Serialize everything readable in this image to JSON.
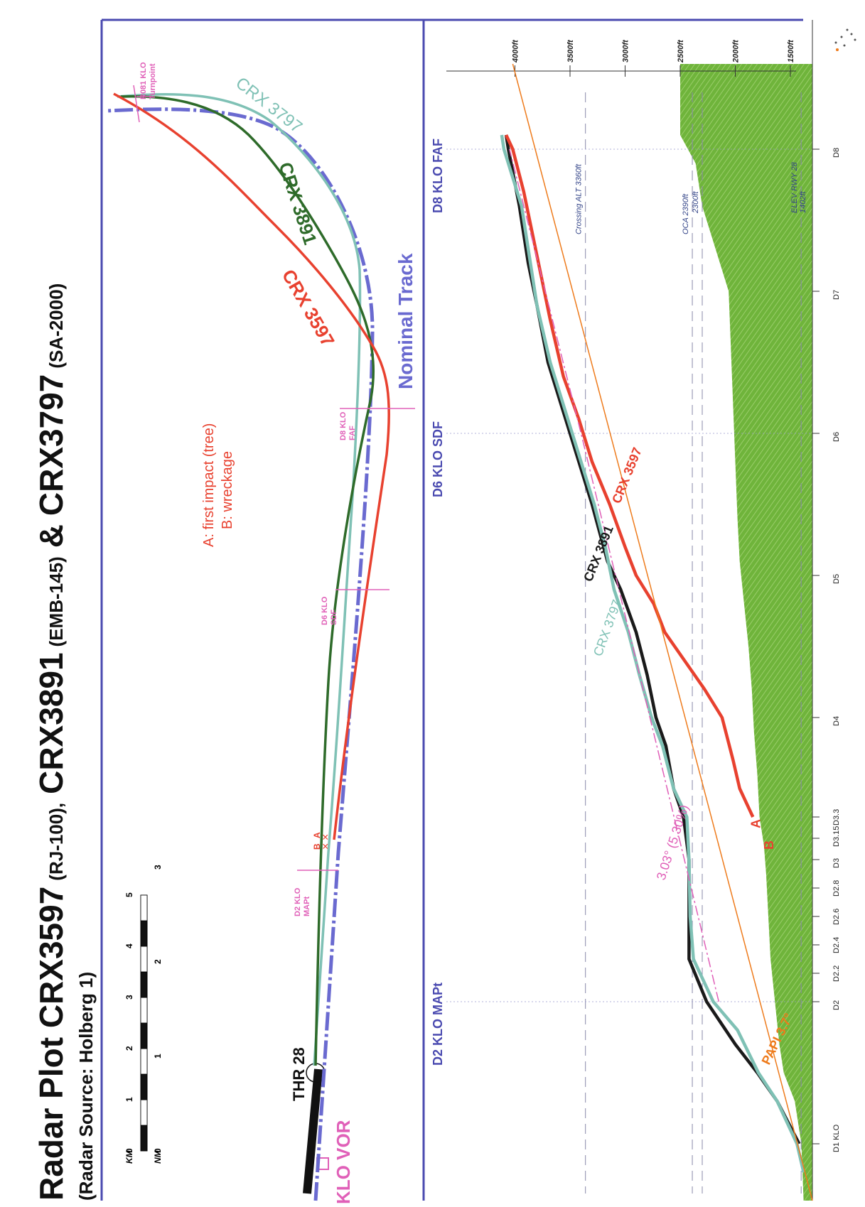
{
  "title": {
    "main_a": "Radar Plot CRX3597",
    "main_a_sub": "(RJ-100),",
    "main_b": "CRX3891",
    "main_b_sub": "(EMB-145)",
    "main_amp": "&",
    "main_c": "CRX3797",
    "main_c_sub": "(SA-2000)",
    "source": "(Radar Source: Holberg 1)"
  },
  "colors": {
    "crx3597": "#e8412f",
    "crx3891_plan": "#2e6b2a",
    "crx3891_profile": "#1a1a1a",
    "crx3797": "#7fc1b5",
    "nominal": "#6a6ad0",
    "magenta": "#e060b8",
    "papi": "#ee7b1c",
    "terrain": "#6fb43b",
    "frame": "#4a4ab0"
  },
  "plan_view": {
    "scale_km_label": "KM",
    "scale_nm_label": "NM",
    "km_ticks": [
      "0",
      "1",
      "2",
      "3",
      "4",
      "5"
    ],
    "nm_ticks": [
      "0",
      "1",
      "2",
      "3"
    ],
    "thr_label": "THR 28",
    "vor_label": "KLO VOR",
    "nominal_label": "Nominal Track",
    "legend_a": "A: first impact (tree)",
    "legend_b": "B: wreckage",
    "waypoints": [
      "D2 KLO\nMAPt",
      "D6 KLO\nSDF",
      "D8 KLO\nFAF",
      "R081 KLO\nTurnpoint"
    ],
    "marker_a": "A",
    "marker_b": "B",
    "track_labels": [
      "CRX 3597",
      "CRX 3891",
      "CRX 3797"
    ]
  },
  "chart_data": {
    "type": "line",
    "title": "",
    "xlabel": "",
    "ylabel": "",
    "x_unit": "NM from KLO",
    "y_unit": "ft",
    "x_ticks": [
      "D1 KLO",
      "D2",
      "D2.2",
      "D2.4",
      "D2.6",
      "D2.8",
      "D3",
      "D3.15",
      "D3.3",
      "D4",
      "D5",
      "D6",
      "D7",
      "D8"
    ],
    "y_ticks": [
      "1500ft",
      "2000ft",
      "2500ft",
      "3000ft",
      "3500ft",
      "4000ft"
    ],
    "ylim": [
      1300,
      4200
    ],
    "xlim": [
      0.6,
      8.6
    ],
    "section_labels": [
      "D2 KLO MAPt",
      "D6 KLO SDF",
      "D8 KLO FAF"
    ],
    "reference_lines": [
      {
        "label": "Crossing ALT 3360ft",
        "y": 3360
      },
      {
        "label": "OCA 2390ft",
        "y": 2390
      },
      {
        "label": "2300ft",
        "y": 2300
      },
      {
        "label": "ELEV RWY 28\n1402ft",
        "y": 1402
      }
    ],
    "glide_labels": [
      "3.03° (5.30%)",
      "PAPI 3.7°"
    ],
    "markers": [
      {
        "label": "A",
        "x": 3.3,
        "y": 1840
      },
      {
        "label": "B",
        "x": 3.15,
        "y": 1720
      }
    ],
    "series": [
      {
        "name": "CRX 3891",
        "x": [
          1.0,
          1.3,
          1.5,
          1.7,
          2.0,
          2.3,
          2.6,
          3.0,
          3.3,
          3.5,
          3.8,
          4.0,
          4.3,
          4.6,
          4.9,
          5.1,
          5.5,
          5.8,
          6.1,
          6.5,
          6.9,
          7.2,
          7.6,
          8.0,
          8.1
        ],
        "y": [
          1420,
          1620,
          1800,
          2000,
          2260,
          2420,
          2420,
          2420,
          2470,
          2560,
          2630,
          2720,
          2800,
          2900,
          3040,
          3160,
          3300,
          3420,
          3540,
          3700,
          3800,
          3880,
          3960,
          4060,
          4080
        ]
      },
      {
        "name": "CRX 3797",
        "x": [
          0.8,
          1.0,
          1.3,
          1.5,
          1.8,
          2.0,
          2.3,
          2.6,
          3.0,
          3.3,
          3.5,
          3.8,
          4.0,
          4.3,
          4.6,
          4.9,
          5.2,
          5.5,
          5.8,
          6.1,
          6.5,
          6.9,
          7.2,
          7.6,
          8.0,
          8.1
        ],
        "y": [
          1380,
          1440,
          1620,
          1790,
          1980,
          2200,
          2380,
          2410,
          2420,
          2440,
          2560,
          2660,
          2760,
          2870,
          2970,
          3100,
          3180,
          3280,
          3400,
          3520,
          3680,
          3800,
          3860,
          3940,
          4100,
          4120
        ]
      },
      {
        "name": "CRX 3597",
        "x": [
          3.3,
          3.5,
          3.7,
          4.0,
          4.2,
          4.4,
          4.6,
          4.8,
          5.0,
          5.2,
          5.5,
          5.8,
          6.1,
          6.4,
          6.8,
          7.1,
          7.4,
          7.7,
          8.0,
          8.1
        ],
        "y": [
          1840,
          1960,
          2020,
          2120,
          2280,
          2460,
          2640,
          2740,
          2900,
          3000,
          3140,
          3300,
          3420,
          3560,
          3680,
          3760,
          3840,
          3920,
          4020,
          4080
        ]
      },
      {
        "name": "",
        "x": [
          0.6,
          8.6
        ],
        "y": [
          1300,
          4020
        ]
      },
      {
        "name": "",
        "x": [
          2.0,
          6.0,
          8.0
        ],
        "y": [
          2150,
          3400,
          4050
        ]
      }
    ],
    "terrain": {
      "x": [
        0.6,
        1.0,
        1.3,
        1.5,
        1.7,
        2.0,
        2.3,
        2.6,
        2.9,
        3.1,
        3.3,
        3.6,
        3.9,
        4.2,
        4.5,
        4.8,
        5.1,
        5.4,
        5.8,
        6.2,
        6.6,
        7.0,
        7.3,
        7.6,
        7.9,
        8.1,
        8.6
      ],
      "y": [
        1380,
        1400,
        1460,
        1560,
        1600,
        1640,
        1680,
        1700,
        1720,
        1740,
        1780,
        1800,
        1830,
        1850,
        1880,
        1920,
        1960,
        1980,
        2000,
        2020,
        2040,
        2060,
        2180,
        2300,
        2360,
        2500,
        2500
      ]
    }
  }
}
